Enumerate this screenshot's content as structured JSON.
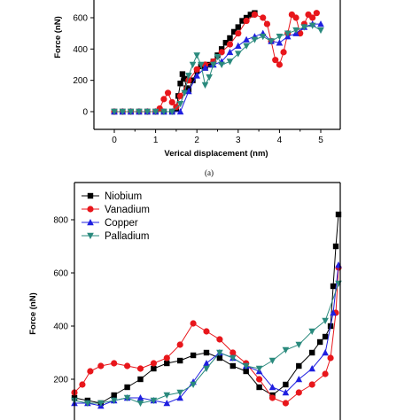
{
  "chart_data": [
    {
      "type": "line",
      "panel": "(a)",
      "xlabel": "Verical displacement (nm)",
      "ylabel": "Force (nN)",
      "xticks": [
        0,
        1,
        2,
        3,
        4,
        5
      ],
      "yticks": [
        0,
        200,
        400,
        600
      ],
      "xlim": [
        -0.5,
        5.5
      ],
      "ylim": [
        -100,
        630
      ],
      "grid": false,
      "series": [
        {
          "id": "niobium",
          "color": "#000000",
          "marker": "square",
          "x": [
            0.0,
            0.2,
            0.4,
            0.6,
            0.8,
            1.0,
            1.2,
            1.4,
            1.5,
            1.55,
            1.6,
            1.65,
            1.7,
            1.75,
            1.8,
            1.9,
            2.0,
            2.1,
            2.2,
            2.3,
            2.4,
            2.5,
            2.6,
            2.7,
            2.8,
            2.9,
            3.0,
            3.1,
            3.2,
            3.3,
            3.4
          ],
          "y": [
            0,
            0,
            0,
            0,
            0,
            0,
            0,
            0,
            20,
            100,
            180,
            240,
            210,
            150,
            140,
            200,
            260,
            290,
            280,
            300,
            320,
            360,
            400,
            440,
            470,
            510,
            540,
            580,
            600,
            620,
            630
          ]
        },
        {
          "id": "vanadium",
          "color": "#e8161b",
          "marker": "circle",
          "x": [
            0.0,
            0.2,
            0.4,
            0.6,
            0.8,
            1.0,
            1.1,
            1.2,
            1.3,
            1.4,
            1.5,
            1.6,
            1.8,
            2.0,
            2.2,
            2.4,
            2.6,
            2.8,
            3.0,
            3.2,
            3.4,
            3.6,
            3.7,
            3.8,
            3.9,
            4.0,
            4.1,
            4.2,
            4.3,
            4.4,
            4.5,
            4.6,
            4.7,
            4.8,
            4.9
          ],
          "y": [
            0,
            0,
            0,
            0,
            0,
            0,
            20,
            80,
            120,
            60,
            30,
            100,
            200,
            270,
            300,
            320,
            380,
            430,
            500,
            580,
            620,
            600,
            560,
            450,
            330,
            300,
            380,
            500,
            620,
            600,
            500,
            560,
            620,
            600,
            630
          ]
        },
        {
          "id": "copper",
          "color": "#1f1fe0",
          "marker": "triangle-up",
          "x": [
            0.0,
            0.2,
            0.4,
            0.6,
            0.8,
            1.0,
            1.2,
            1.4,
            1.6,
            1.8,
            2.0,
            2.2,
            2.4,
            2.6,
            2.8,
            3.0,
            3.2,
            3.4,
            3.6,
            3.8,
            4.0,
            4.2,
            4.4,
            4.6,
            4.8,
            5.0
          ],
          "y": [
            0,
            0,
            0,
            0,
            0,
            0,
            0,
            0,
            0,
            130,
            230,
            280,
            300,
            320,
            380,
            420,
            460,
            480,
            500,
            450,
            440,
            480,
            500,
            540,
            560,
            560
          ]
        },
        {
          "id": "palladium",
          "color": "#2a8a7d",
          "marker": "triangle-down",
          "x": [
            0.0,
            0.2,
            0.4,
            0.6,
            0.8,
            1.0,
            1.2,
            1.4,
            1.6,
            1.7,
            1.8,
            1.9,
            2.0,
            2.1,
            2.2,
            2.3,
            2.4,
            2.5,
            2.6,
            2.8,
            3.0,
            3.2,
            3.4,
            3.6,
            3.8,
            4.0,
            4.2,
            4.4,
            4.6,
            4.8,
            5.0
          ],
          "y": [
            0,
            0,
            0,
            0,
            0,
            0,
            0,
            0,
            50,
            120,
            230,
            300,
            360,
            300,
            170,
            220,
            300,
            350,
            300,
            320,
            370,
            420,
            460,
            480,
            450,
            480,
            500,
            520,
            540,
            550,
            520
          ]
        }
      ]
    },
    {
      "type": "line",
      "ylabel": "Force (nN)",
      "yticks": [
        200,
        400,
        600,
        800
      ],
      "xlim": [
        0,
        1
      ],
      "ylim": [
        100,
        900
      ],
      "grid": false,
      "legend": {
        "position": "top-left",
        "entries": [
          "Niobium",
          "Vanadium",
          "Copper",
          "Palladium"
        ]
      },
      "series": [
        {
          "name": "Niobium",
          "color": "#000000",
          "marker": "square",
          "x": [
            0.0,
            0.05,
            0.1,
            0.15,
            0.2,
            0.25,
            0.3,
            0.35,
            0.4,
            0.45,
            0.5,
            0.55,
            0.6,
            0.65,
            0.7,
            0.75,
            0.8,
            0.85,
            0.9,
            0.93,
            0.95,
            0.97,
            0.98,
            0.99,
            1.0
          ],
          "y": [
            130,
            120,
            110,
            140,
            170,
            200,
            240,
            260,
            270,
            290,
            300,
            280,
            250,
            230,
            170,
            140,
            180,
            250,
            300,
            340,
            360,
            400,
            550,
            700,
            820
          ]
        },
        {
          "name": "Vanadium",
          "color": "#e8161b",
          "marker": "circle",
          "x": [
            0.0,
            0.03,
            0.06,
            0.1,
            0.15,
            0.2,
            0.25,
            0.3,
            0.35,
            0.4,
            0.45,
            0.5,
            0.55,
            0.6,
            0.65,
            0.7,
            0.75,
            0.8,
            0.85,
            0.9,
            0.95,
            0.97,
            0.99,
            1.0
          ],
          "y": [
            150,
            180,
            230,
            250,
            260,
            250,
            240,
            260,
            280,
            330,
            410,
            380,
            350,
            300,
            260,
            200,
            130,
            110,
            150,
            180,
            220,
            280,
            450,
            620
          ]
        },
        {
          "name": "Copper",
          "color": "#1f1fe0",
          "marker": "triangle-up",
          "x": [
            0.0,
            0.05,
            0.1,
            0.15,
            0.2,
            0.25,
            0.3,
            0.35,
            0.4,
            0.45,
            0.5,
            0.55,
            0.6,
            0.65,
            0.7,
            0.75,
            0.8,
            0.85,
            0.9,
            0.95,
            0.98,
            1.0
          ],
          "y": [
            110,
            110,
            100,
            120,
            130,
            130,
            120,
            110,
            130,
            190,
            260,
            300,
            280,
            250,
            230,
            170,
            150,
            200,
            240,
            300,
            450,
            630
          ]
        },
        {
          "name": "Palladium",
          "color": "#2a8a7d",
          "marker": "triangle-down",
          "x": [
            0.0,
            0.05,
            0.1,
            0.15,
            0.2,
            0.25,
            0.3,
            0.35,
            0.4,
            0.45,
            0.5,
            0.55,
            0.6,
            0.65,
            0.7,
            0.75,
            0.8,
            0.85,
            0.9,
            0.95,
            1.0
          ],
          "y": [
            120,
            110,
            110,
            120,
            130,
            110,
            120,
            140,
            150,
            180,
            240,
            300,
            280,
            250,
            240,
            270,
            310,
            330,
            380,
            420,
            560
          ]
        }
      ]
    }
  ]
}
